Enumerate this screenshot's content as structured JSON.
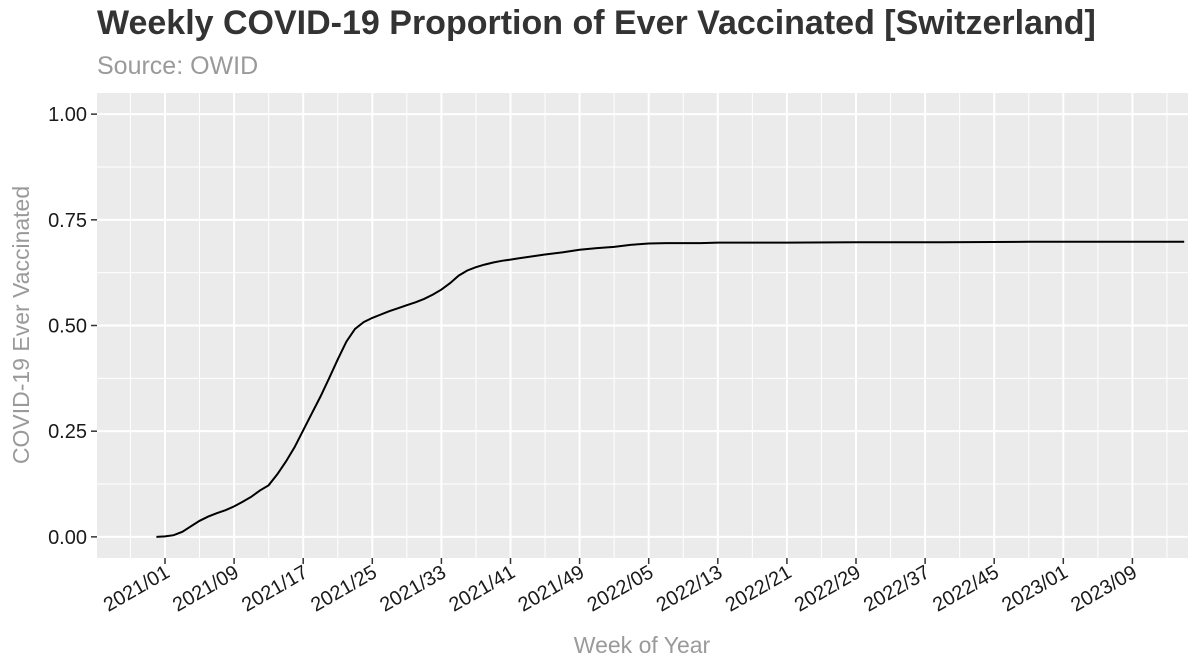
{
  "chart_data": {
    "type": "line",
    "title": "Weekly COVID-19 Proportion of Ever Vaccinated [Switzerland]",
    "subtitle": "Source: OWID",
    "xlabel": "Week of Year",
    "ylabel": "COVID-19 Ever Vaccinated",
    "x_tick_labels": [
      "2021/01",
      "2021/09",
      "2021/17",
      "2021/25",
      "2021/33",
      "2021/41",
      "2021/49",
      "2022/05",
      "2022/13",
      "2022/21",
      "2022/29",
      "2022/37",
      "2022/45",
      "2023/01",
      "2023/09"
    ],
    "y_ticks": [
      0,
      0.25,
      0.5,
      0.75,
      1.0
    ],
    "y_tick_labels": [
      "0.00",
      "0.25",
      "0.50",
      "0.75",
      "1.00"
    ],
    "ylim": [
      -0.05,
      1.05
    ],
    "grid": true,
    "series": [
      {
        "color": "#000000",
        "x": [
          -1,
          0,
          1,
          2,
          3,
          4,
          5,
          6,
          7,
          8,
          9,
          10,
          11,
          12,
          13,
          14,
          15,
          16,
          17,
          18,
          19,
          20,
          21,
          22,
          23,
          24,
          25,
          26,
          27,
          28,
          29,
          30,
          31,
          32,
          33,
          34,
          35,
          36,
          37,
          38,
          39,
          40,
          41,
          42,
          44,
          46,
          48,
          50,
          52,
          54,
          56,
          58,
          60,
          62,
          64,
          68,
          72,
          80,
          90,
          100,
          110,
          118
        ],
        "y": [
          0.0,
          0.001,
          0.004,
          0.012,
          0.025,
          0.038,
          0.048,
          0.056,
          0.063,
          0.072,
          0.083,
          0.095,
          0.11,
          0.122,
          0.148,
          0.178,
          0.212,
          0.252,
          0.292,
          0.332,
          0.375,
          0.42,
          0.462,
          0.492,
          0.508,
          0.518,
          0.526,
          0.534,
          0.541,
          0.548,
          0.555,
          0.563,
          0.573,
          0.585,
          0.6,
          0.618,
          0.63,
          0.638,
          0.644,
          0.649,
          0.653,
          0.656,
          0.659,
          0.662,
          0.668,
          0.673,
          0.679,
          0.683,
          0.686,
          0.691,
          0.694,
          0.695,
          0.695,
          0.695,
          0.696,
          0.696,
          0.696,
          0.697,
          0.697,
          0.698,
          0.698,
          0.698
        ]
      }
    ]
  }
}
